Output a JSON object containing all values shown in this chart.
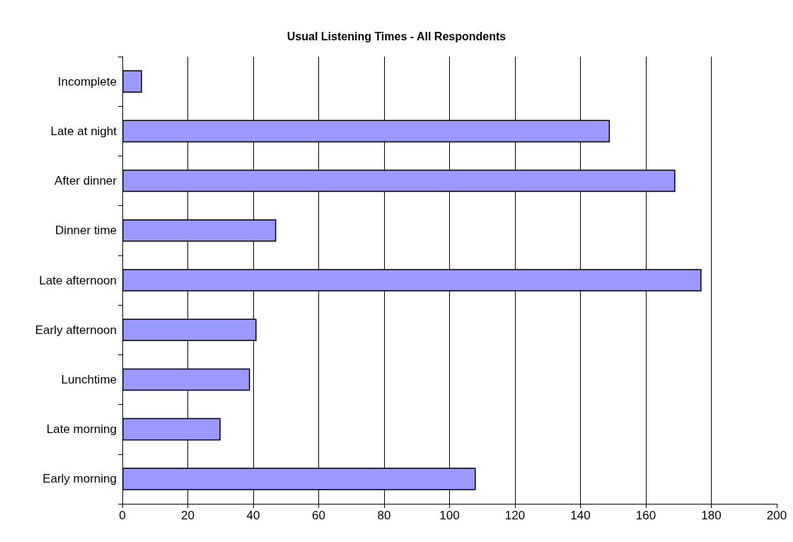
{
  "chart_data": {
    "type": "bar",
    "orientation": "horizontal",
    "title": "Usual Listening Times - All Respondents",
    "categories": [
      "Incomplete",
      "Late at night",
      "After dinner",
      "Dinner time",
      "Late afternoon",
      "Early afternoon",
      "Lunchtime",
      "Late morning",
      "Early morning"
    ],
    "values": [
      6,
      149,
      169,
      47,
      177,
      41,
      39,
      30,
      108
    ],
    "color": "#9999ff",
    "xlim": [
      0,
      200
    ],
    "xticks": [
      0,
      20,
      40,
      60,
      80,
      100,
      120,
      140,
      160,
      180,
      200
    ],
    "grid": "x"
  }
}
